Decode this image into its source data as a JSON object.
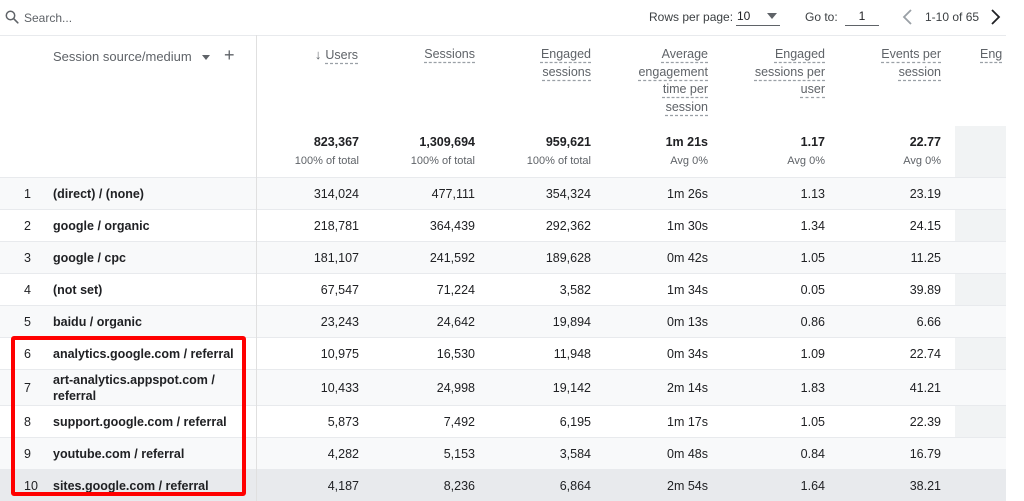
{
  "toolbar": {
    "search_placeholder": "Search...",
    "rows_per_page_label": "Rows per page:",
    "rows_per_page_value": "10",
    "goto_label": "Go to:",
    "goto_value": "1",
    "page_range": "1-10 of 65",
    "icons": {
      "search": "search-icon",
      "prev": "chevron-left-icon",
      "next": "chevron-right-icon",
      "dropdown": "caret-down-icon"
    }
  },
  "table": {
    "dimension_header": "Session source/medium",
    "add_dimension_symbol": "+",
    "columns": [
      {
        "label": "Users",
        "total": "823,367",
        "sub": "100% of total",
        "sorted": true,
        "sort_symbol": "↓"
      },
      {
        "label": "Sessions",
        "total": "1,309,694",
        "sub": "100% of total"
      },
      {
        "label": "Engaged sessions",
        "total": "959,621",
        "sub": "100% of total"
      },
      {
        "label": "Average engagement time per session",
        "total": "1m 21s",
        "sub": "Avg 0%"
      },
      {
        "label": "Engaged sessions per user",
        "total": "1.17",
        "sub": "Avg 0%"
      },
      {
        "label": "Events per session",
        "total": "22.77",
        "sub": "Avg 0%"
      },
      {
        "label": "Eng",
        "total": "",
        "sub": ""
      }
    ],
    "rows": [
      {
        "num": "1",
        "dim": "(direct) / (none)",
        "values": [
          "314,024",
          "477,111",
          "354,324",
          "1m 26s",
          "1.13",
          "23.19"
        ]
      },
      {
        "num": "2",
        "dim": "google / organic",
        "values": [
          "218,781",
          "364,439",
          "292,362",
          "1m 30s",
          "1.34",
          "24.15"
        ]
      },
      {
        "num": "3",
        "dim": "google / cpc",
        "values": [
          "181,107",
          "241,592",
          "189,628",
          "0m 42s",
          "1.05",
          "11.25"
        ]
      },
      {
        "num": "4",
        "dim": "(not set)",
        "values": [
          "67,547",
          "71,224",
          "3,582",
          "1m 34s",
          "0.05",
          "39.89"
        ]
      },
      {
        "num": "5",
        "dim": "baidu / organic",
        "values": [
          "23,243",
          "24,642",
          "19,894",
          "0m 13s",
          "0.86",
          "6.66"
        ]
      },
      {
        "num": "6",
        "dim": "analytics.google.com / referral",
        "values": [
          "10,975",
          "16,530",
          "11,948",
          "0m 34s",
          "1.09",
          "22.74"
        ]
      },
      {
        "num": "7",
        "dim": "art-analytics.appspot.com / referral",
        "values": [
          "10,433",
          "24,998",
          "19,142",
          "2m 14s",
          "1.83",
          "41.21"
        ]
      },
      {
        "num": "8",
        "dim": "support.google.com / referral",
        "values": [
          "5,873",
          "7,492",
          "6,195",
          "1m 17s",
          "1.05",
          "22.39"
        ]
      },
      {
        "num": "9",
        "dim": "youtube.com / referral",
        "values": [
          "4,282",
          "5,153",
          "3,584",
          "0m 48s",
          "0.84",
          "16.79"
        ]
      },
      {
        "num": "10",
        "dim": "sites.google.com / referral",
        "values": [
          "4,187",
          "8,236",
          "6,864",
          "2m 54s",
          "1.64",
          "38.21"
        ]
      }
    ]
  },
  "colors": {
    "highlight_box": "#ff0000",
    "row_shade": "#f8f9fa",
    "hovered_row": "#e8eaed",
    "text": "#202124",
    "muted": "#5f6368"
  }
}
